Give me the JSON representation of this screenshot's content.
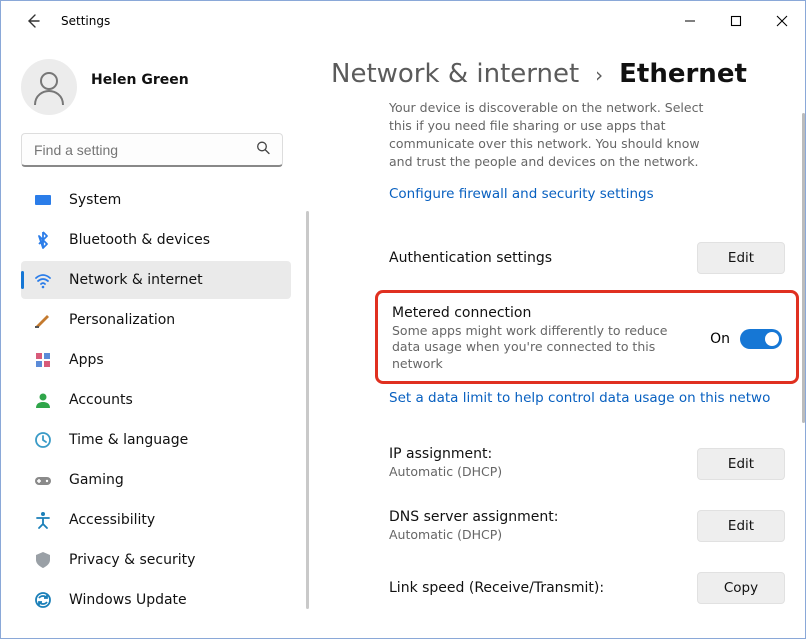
{
  "window": {
    "app_title": "Settings"
  },
  "profile": {
    "name": "Helen Green"
  },
  "search": {
    "placeholder": "Find a setting"
  },
  "sidebar": {
    "items": [
      {
        "label": "System",
        "icon_color": "#2b7de9"
      },
      {
        "label": "Bluetooth & devices",
        "icon_color": "#2b7de9"
      },
      {
        "label": "Network & internet",
        "icon_color": "#2b7de9",
        "selected": true
      },
      {
        "label": "Personalization",
        "icon_color": "#c47a2e"
      },
      {
        "label": "Apps",
        "icon_color": "#d85b7a"
      },
      {
        "label": "Accounts",
        "icon_color": "#2fa54a"
      },
      {
        "label": "Time & language",
        "icon_color": "#3a9bc7"
      },
      {
        "label": "Gaming",
        "icon_color": "#8a8a8a"
      },
      {
        "label": "Accessibility",
        "icon_color": "#1a7fb8"
      },
      {
        "label": "Privacy & security",
        "icon_color": "#9aa0a6"
      },
      {
        "label": "Windows Update",
        "icon_color": "#1a7fb8"
      }
    ]
  },
  "page": {
    "breadcrumb_parent": "Network & internet",
    "breadcrumb_current": "Ethernet",
    "discoverable_desc": "Your device is discoverable on the network. Select this if you need file sharing or use apps that communicate over this network. You should know and trust the people and devices on the network.",
    "firewall_link": "Configure firewall and security settings",
    "auth": {
      "title": "Authentication settings",
      "button": "Edit"
    },
    "metered": {
      "title": "Metered connection",
      "desc": "Some apps might work differently to reduce data usage when you're connected to this network",
      "state_label": "On",
      "state": true,
      "link": "Set a data limit to help control data usage on this netwo"
    },
    "ip": {
      "title": "IP assignment:",
      "value": "Automatic (DHCP)",
      "button": "Edit"
    },
    "dns": {
      "title": "DNS server assignment:",
      "value": "Automatic (DHCP)",
      "button": "Edit"
    },
    "linkspeed": {
      "title": "Link speed (Receive/Transmit):",
      "button": "Copy"
    }
  },
  "colors": {
    "accent": "#1677d5",
    "link": "#0860c0",
    "highlight_border": "#e03020",
    "button_bg": "#eeeeee"
  }
}
